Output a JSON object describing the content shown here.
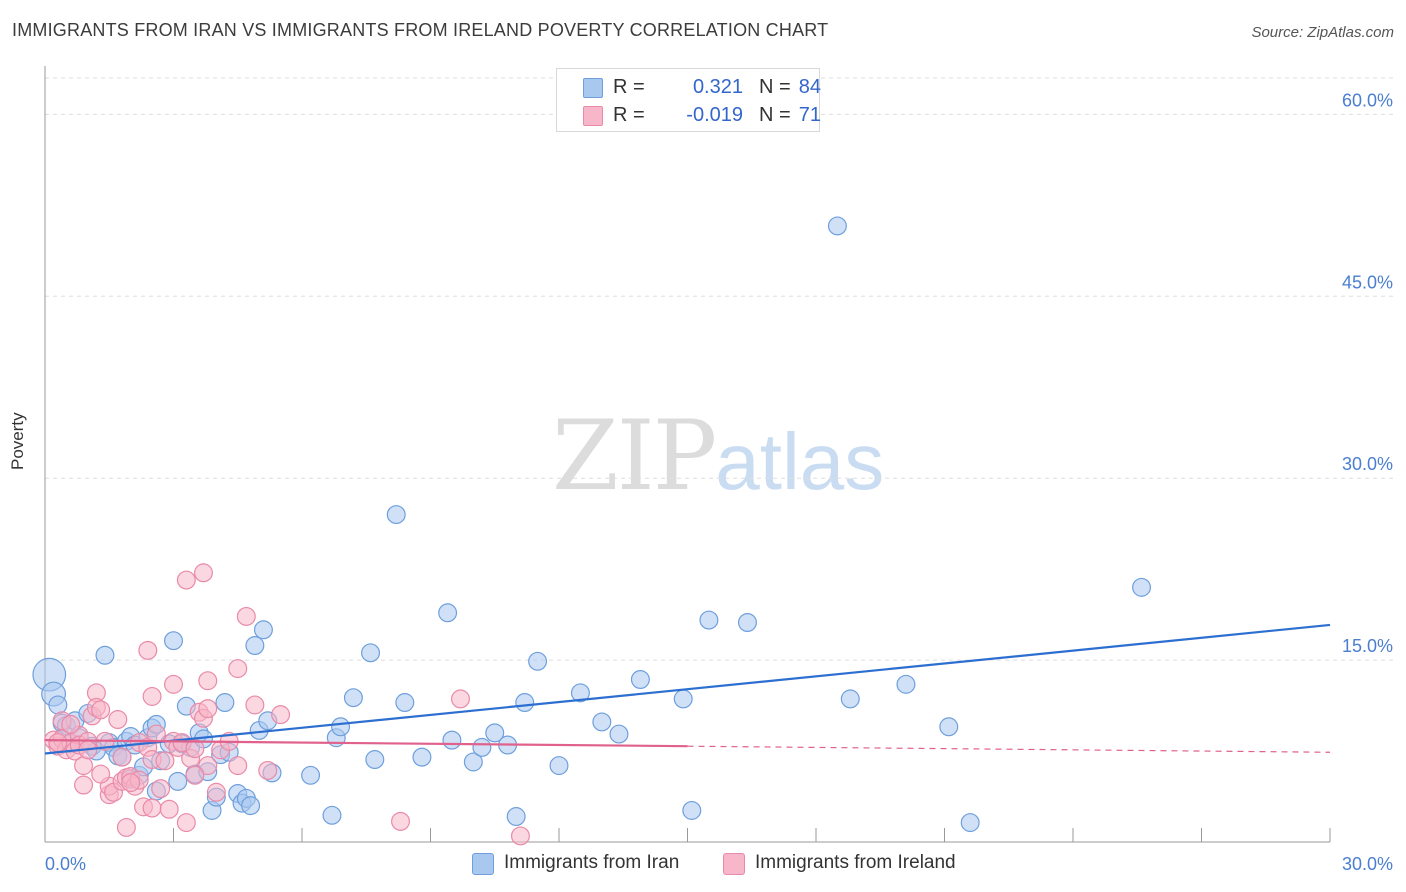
{
  "header": {
    "title": "IMMIGRANTS FROM IRAN VS IMMIGRANTS FROM IRELAND POVERTY CORRELATION CHART",
    "source": "Source: ZipAtlas.com"
  },
  "watermark": {
    "zip": "ZIP",
    "atlas": "atlas"
  },
  "stats_legend": {
    "rows": [
      {
        "r_label": "R =",
        "r_value": "0.321",
        "n_label": "N =",
        "n_value": "84",
        "color": "#a9c8f0"
      },
      {
        "r_label": "R =",
        "r_value": "-0.019",
        "n_label": "N =",
        "n_value": "71",
        "color": "#f7b6c9"
      }
    ]
  },
  "colors": {
    "iran_fill": "#a9c8f0",
    "iran_stroke": "#6e9fdc",
    "iran_line": "#2d6fd0",
    "ireland_fill": "#f7b6c9",
    "ireland_stroke": "#e98aa8",
    "ireland_line": "#e0628c",
    "tick_label": "#4a7fd0",
    "grid": "#dedede"
  },
  "chart_data": {
    "type": "scatter",
    "title": "IMMIGRANTS FROM IRAN VS IMMIGRANTS FROM IRELAND POVERTY CORRELATION CHART",
    "xlabel": "",
    "ylabel": "Poverty",
    "xlim": [
      0,
      30
    ],
    "ylim": [
      0,
      63
    ],
    "x_tick_labels": [
      "0.0%",
      "30.0%"
    ],
    "y_ticks": [
      15,
      30,
      45,
      60
    ],
    "y_tick_labels": [
      "15.0%",
      "30.0%",
      "45.0%",
      "60.0%"
    ],
    "grid": true,
    "legend": "bottom-center",
    "series": [
      {
        "name": "Immigrants from Iran",
        "trend": {
          "x": [
            0,
            30
          ],
          "y": [
            7.3,
            17.9
          ]
        },
        "points": [
          [
            0.1,
            13.8
          ],
          [
            0.2,
            12.2
          ],
          [
            0.3,
            11.3
          ],
          [
            0.4,
            9.8
          ],
          [
            0.5,
            9.6
          ],
          [
            0.6,
            8.1
          ],
          [
            0.7,
            10.0
          ],
          [
            0.8,
            8.6
          ],
          [
            1.0,
            10.6
          ],
          [
            1.1,
            7.9
          ],
          [
            1.2,
            7.5
          ],
          [
            1.4,
            15.4
          ],
          [
            1.5,
            8.2
          ],
          [
            1.6,
            7.8
          ],
          [
            1.7,
            7.1
          ],
          [
            1.8,
            7.0
          ],
          [
            1.9,
            8.3
          ],
          [
            2.0,
            8.7
          ],
          [
            2.0,
            5.2
          ],
          [
            2.1,
            8.0
          ],
          [
            2.2,
            5.5
          ],
          [
            2.3,
            6.2
          ],
          [
            2.4,
            8.6
          ],
          [
            2.5,
            9.4
          ],
          [
            2.6,
            9.7
          ],
          [
            2.6,
            4.2
          ],
          [
            2.7,
            6.7
          ],
          [
            2.9,
            8.1
          ],
          [
            3.0,
            16.6
          ],
          [
            3.1,
            5.0
          ],
          [
            3.2,
            8.1
          ],
          [
            3.3,
            11.2
          ],
          [
            3.4,
            7.8
          ],
          [
            3.5,
            5.6
          ],
          [
            3.6,
            9.0
          ],
          [
            3.7,
            8.5
          ],
          [
            3.8,
            5.8
          ],
          [
            3.9,
            2.6
          ],
          [
            4.0,
            3.7
          ],
          [
            4.1,
            7.2
          ],
          [
            4.2,
            11.5
          ],
          [
            4.3,
            7.4
          ],
          [
            4.5,
            4.0
          ],
          [
            4.6,
            3.2
          ],
          [
            4.7,
            3.6
          ],
          [
            4.8,
            3.0
          ],
          [
            4.9,
            16.2
          ],
          [
            5.1,
            17.5
          ],
          [
            5.0,
            9.2
          ],
          [
            5.2,
            10.0
          ],
          [
            5.3,
            5.7
          ],
          [
            6.2,
            5.5
          ],
          [
            6.7,
            2.2
          ],
          [
            6.8,
            8.6
          ],
          [
            6.9,
            9.5
          ],
          [
            7.2,
            11.9
          ],
          [
            7.6,
            15.6
          ],
          [
            7.7,
            6.8
          ],
          [
            8.2,
            27.0
          ],
          [
            8.4,
            11.5
          ],
          [
            8.8,
            7.0
          ],
          [
            9.4,
            18.9
          ],
          [
            9.5,
            8.4
          ],
          [
            10.0,
            6.6
          ],
          [
            10.2,
            7.8
          ],
          [
            10.5,
            9.0
          ],
          [
            10.8,
            8.0
          ],
          [
            11.0,
            2.1
          ],
          [
            11.2,
            11.5
          ],
          [
            11.5,
            14.9
          ],
          [
            12.0,
            6.3
          ],
          [
            12.5,
            12.3
          ],
          [
            13.0,
            9.9
          ],
          [
            13.4,
            8.9
          ],
          [
            13.9,
            13.4
          ],
          [
            14.9,
            11.8
          ],
          [
            15.1,
            2.6
          ],
          [
            15.5,
            18.3
          ],
          [
            16.4,
            18.1
          ],
          [
            18.5,
            50.8
          ],
          [
            18.8,
            11.8
          ],
          [
            20.1,
            13.0
          ],
          [
            21.1,
            9.5
          ],
          [
            21.6,
            1.6
          ],
          [
            25.6,
            21.0
          ]
        ],
        "radius": [
          22,
          16,
          12,
          12,
          12,
          12,
          12,
          12,
          12,
          12,
          12,
          12,
          12,
          12,
          12,
          12,
          12,
          12,
          12,
          12,
          12,
          12,
          12,
          12,
          12,
          12,
          12,
          12,
          12,
          12,
          12,
          12,
          12,
          12,
          12,
          12,
          12,
          12,
          12,
          12,
          12,
          12,
          12,
          12,
          12,
          12,
          12,
          12,
          12,
          12,
          12,
          12,
          12,
          12,
          12,
          12,
          12,
          12,
          12,
          12,
          12,
          12,
          12,
          12,
          12,
          12,
          12,
          12,
          12,
          12,
          12,
          12,
          12,
          12,
          12,
          12,
          12,
          12,
          12,
          12,
          12,
          12,
          12,
          12,
          12
        ]
      },
      {
        "name": "Immigrants from Ireland",
        "trend": {
          "x": [
            0,
            15.0
          ],
          "y": [
            8.4,
            7.9
          ]
        },
        "trend_dashed": {
          "x": [
            15.0,
            30
          ],
          "y": [
            7.9,
            7.4
          ]
        },
        "points": [
          [
            0.2,
            8.4
          ],
          [
            0.3,
            7.9
          ],
          [
            0.4,
            8.5
          ],
          [
            0.4,
            10.0
          ],
          [
            0.5,
            7.6
          ],
          [
            0.6,
            8.2
          ],
          [
            0.7,
            7.5
          ],
          [
            0.8,
            8.8
          ],
          [
            0.8,
            8.0
          ],
          [
            0.9,
            4.7
          ],
          [
            0.9,
            6.3
          ],
          [
            1.0,
            8.3
          ],
          [
            1.1,
            10.4
          ],
          [
            1.2,
            12.3
          ],
          [
            1.2,
            11.1
          ],
          [
            1.3,
            10.9
          ],
          [
            1.4,
            8.3
          ],
          [
            1.5,
            3.9
          ],
          [
            1.5,
            4.6
          ],
          [
            1.6,
            4.1
          ],
          [
            1.7,
            10.1
          ],
          [
            1.8,
            7.0
          ],
          [
            1.8,
            5.0
          ],
          [
            1.9,
            1.2
          ],
          [
            1.9,
            5.3
          ],
          [
            2.0,
            5.4
          ],
          [
            2.1,
            4.6
          ],
          [
            2.2,
            8.2
          ],
          [
            2.2,
            5.1
          ],
          [
            2.3,
            2.9
          ],
          [
            2.4,
            7.8
          ],
          [
            2.4,
            15.8
          ],
          [
            2.5,
            2.8
          ],
          [
            2.5,
            6.8
          ],
          [
            2.5,
            12.0
          ],
          [
            2.6,
            8.9
          ],
          [
            2.7,
            4.4
          ],
          [
            2.8,
            6.7
          ],
          [
            2.9,
            2.7
          ],
          [
            3.0,
            8.3
          ],
          [
            3.0,
            13.0
          ],
          [
            3.1,
            7.8
          ],
          [
            3.2,
            8.2
          ],
          [
            3.3,
            1.6
          ],
          [
            3.3,
            21.6
          ],
          [
            3.4,
            6.9
          ],
          [
            3.5,
            7.7
          ],
          [
            3.6,
            10.7
          ],
          [
            3.7,
            22.2
          ],
          [
            3.7,
            10.2
          ],
          [
            3.8,
            6.3
          ],
          [
            3.8,
            11.0
          ],
          [
            3.8,
            13.3
          ],
          [
            4.0,
            4.1
          ],
          [
            4.1,
            7.6
          ],
          [
            4.3,
            8.3
          ],
          [
            4.5,
            14.3
          ],
          [
            4.5,
            6.3
          ],
          [
            4.7,
            18.6
          ],
          [
            4.9,
            11.3
          ],
          [
            5.2,
            5.9
          ],
          [
            5.5,
            10.5
          ],
          [
            8.3,
            1.7
          ],
          [
            9.7,
            11.8
          ],
          [
            11.1,
            0.5
          ],
          [
            0.3,
            8.2
          ],
          [
            0.6,
            9.7
          ],
          [
            1.0,
            7.6
          ],
          [
            1.3,
            5.6
          ],
          [
            2.0,
            4.9
          ],
          [
            3.5,
            5.5
          ]
        ],
        "radius": [
          12,
          12,
          12,
          12,
          12,
          12,
          12,
          12,
          12,
          12,
          12,
          12,
          12,
          12,
          12,
          12,
          12,
          12,
          12,
          12,
          12,
          12,
          12,
          12,
          12,
          12,
          12,
          12,
          12,
          12,
          12,
          12,
          12,
          12,
          12,
          12,
          12,
          12,
          12,
          12,
          12,
          12,
          12,
          12,
          12,
          12,
          12,
          12,
          12,
          12,
          12,
          12,
          12,
          12,
          12,
          12,
          12,
          12,
          12,
          12,
          12,
          12,
          12,
          12,
          12,
          12,
          12,
          12,
          12,
          12,
          12
        ]
      }
    ]
  },
  "bottom_legend": [
    {
      "label": "Immigrants from Iran",
      "color": "#a9c8f0"
    },
    {
      "label": "Immigrants from Ireland",
      "color": "#f7b6c9"
    }
  ]
}
